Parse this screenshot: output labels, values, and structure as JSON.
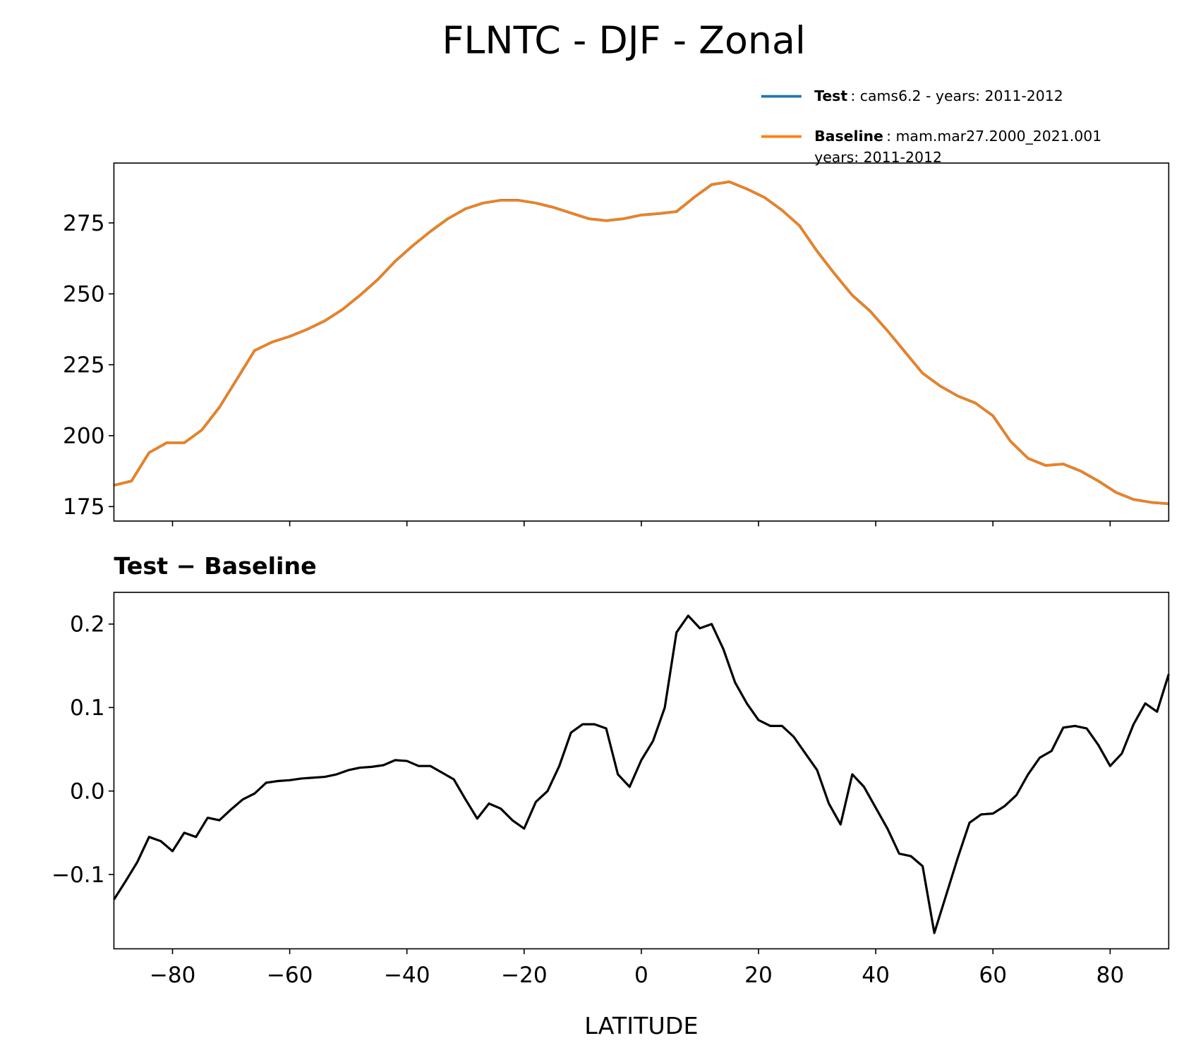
{
  "chart_data": [
    {
      "type": "line",
      "title": "FLNTC - DJF - Zonal",
      "x": [
        -90,
        -87,
        -84,
        -81,
        -78,
        -75,
        -72,
        -69,
        -66,
        -63,
        -60,
        -57,
        -54,
        -51,
        -48,
        -45,
        -42,
        -39,
        -36,
        -33,
        -30,
        -27,
        -24,
        -21,
        -18,
        -15,
        -12,
        -9,
        -6,
        -3,
        0,
        3,
        6,
        9,
        12,
        15,
        18,
        21,
        24,
        27,
        30,
        33,
        36,
        39,
        42,
        45,
        48,
        51,
        54,
        57,
        60,
        63,
        66,
        69,
        72,
        75,
        78,
        81,
        84,
        87,
        90
      ],
      "series": [
        {
          "name": "Test",
          "label_lines": [
            ": cams6.2 - years: 2011-2012"
          ],
          "color": "#1f77b4",
          "values": [
            182.5,
            184,
            194,
            197.5,
            197.5,
            202,
            210,
            220,
            230,
            233,
            235,
            237.5,
            240.5,
            244.5,
            249.5,
            255,
            261.5,
            267,
            272,
            276.5,
            280,
            282,
            283,
            283,
            282,
            280.5,
            278.5,
            276.5,
            275.8,
            276.5,
            277.8,
            278.3,
            279,
            284,
            288.5,
            289.5,
            287,
            284,
            279.5,
            274,
            265,
            257,
            249.5,
            244,
            237,
            229.5,
            222,
            217.5,
            214,
            211.5,
            207,
            198,
            192,
            189.5,
            190,
            187.5,
            184,
            180,
            177.5,
            176.5,
            176
          ]
        },
        {
          "name": "Baseline",
          "label_lines": [
            ": mam.mar27.2000_2021.001",
            "years: 2011-2012"
          ],
          "color": "#ff7f0e",
          "values": [
            182.5,
            184,
            194,
            197.5,
            197.5,
            202,
            210,
            220,
            230,
            233,
            235,
            237.5,
            240.5,
            244.5,
            249.5,
            255,
            261.5,
            267,
            272,
            276.5,
            280,
            282,
            283,
            283,
            282,
            280.5,
            278.5,
            276.5,
            275.8,
            276.5,
            277.8,
            278.3,
            279,
            284,
            288.5,
            289.5,
            287,
            284,
            279.5,
            274,
            265,
            257,
            249.5,
            244,
            237,
            229.5,
            222,
            217.5,
            214,
            211.5,
            207,
            198,
            192,
            189.5,
            190,
            187.5,
            184,
            180,
            177.5,
            176.5,
            176
          ]
        }
      ],
      "xlim": [
        -90,
        90
      ],
      "xticks": [
        -80,
        -60,
        -40,
        -20,
        0,
        20,
        40,
        60,
        80
      ],
      "ylim": [
        169.9,
        296.1
      ],
      "yticks": [
        175,
        200,
        225,
        250,
        275
      ]
    },
    {
      "type": "line",
      "title": "Test − Baseline",
      "x_label": "LATITUDE",
      "x": [
        -90,
        -88,
        -86,
        -84,
        -82,
        -80,
        -78,
        -76,
        -74,
        -72,
        -70,
        -68,
        -66,
        -64,
        -62,
        -60,
        -58,
        -56,
        -54,
        -52,
        -50,
        -48,
        -46,
        -44,
        -42,
        -40,
        -38,
        -36,
        -34,
        -32,
        -30,
        -28,
        -26,
        -24,
        -22,
        -20,
        -18,
        -16,
        -14,
        -12,
        -10,
        -8,
        -6,
        -4,
        -2,
        0,
        2,
        4,
        6,
        8,
        10,
        12,
        14,
        16,
        18,
        20,
        22,
        24,
        26,
        28,
        30,
        32,
        34,
        36,
        38,
        40,
        42,
        44,
        46,
        48,
        50,
        52,
        54,
        56,
        58,
        60,
        62,
        64,
        66,
        68,
        70,
        72,
        74,
        76,
        78,
        80,
        82,
        84,
        86,
        88,
        90
      ],
      "series": [
        {
          "color": "#000000",
          "values": [
            -0.13,
            -0.108,
            -0.085,
            -0.055,
            -0.06,
            -0.072,
            -0.05,
            -0.055,
            -0.032,
            -0.035,
            -0.022,
            -0.01,
            -0.003,
            0.01,
            0.012,
            0.013,
            0.015,
            0.016,
            0.017,
            0.02,
            0.025,
            0.028,
            0.029,
            0.031,
            0.037,
            0.036,
            0.03,
            0.03,
            0.022,
            0.014,
            -0.01,
            -0.033,
            -0.015,
            -0.021,
            -0.035,
            -0.045,
            -0.013,
            0.0,
            0.03,
            0.07,
            0.08,
            0.08,
            0.075,
            0.02,
            0.005,
            0.037,
            0.06,
            0.1,
            0.19,
            0.21,
            0.195,
            0.2,
            0.17,
            0.13,
            0.105,
            0.085,
            0.078,
            0.078,
            0.065,
            0.045,
            0.025,
            -0.015,
            -0.04,
            0.02,
            0.005,
            -0.02,
            -0.045,
            -0.075,
            -0.078,
            -0.09,
            -0.17,
            -0.125,
            -0.08,
            -0.038,
            -0.028,
            -0.027,
            -0.018,
            -0.005,
            0.02,
            0.04,
            0.048,
            0.076,
            0.078,
            0.075,
            0.055,
            0.03,
            0.045,
            0.08,
            0.105,
            0.095,
            0.14
          ]
        }
      ],
      "xlim": [
        -90,
        90
      ],
      "xticks": [
        {
          "value": -80,
          "label": "−80"
        },
        {
          "value": -60,
          "label": "−60"
        },
        {
          "value": -40,
          "label": "−40"
        },
        {
          "value": -20,
          "label": "−20"
        },
        0,
        20,
        40,
        60,
        80
      ],
      "ylim": [
        -0.189,
        0.238
      ],
      "yticks": [
        {
          "value": -0.1,
          "label": "−0.1"
        },
        {
          "value": 0,
          "label": "0.0"
        },
        0.1,
        0.2
      ]
    }
  ]
}
